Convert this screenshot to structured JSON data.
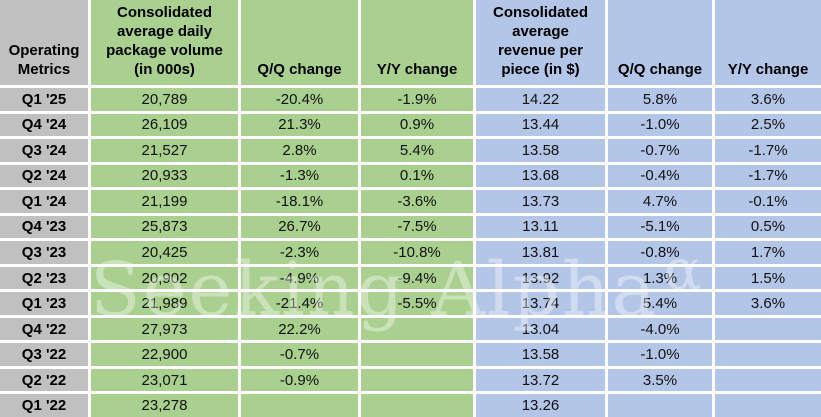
{
  "colors": {
    "label_bg": "#c0c0c0",
    "volume_bg": "#a9d08e",
    "revenue_bg": "#b4c6e7",
    "gridline": "#ffffff",
    "text": "#000000"
  },
  "headers": {
    "corner": "Operating\nMetrics",
    "volume": "Consolidated\naverage daily\npackage volume\n(in 000s)",
    "volume_qq": "Q/Q change",
    "volume_yy": "Y/Y change",
    "revenue": "Consolidated\naverage\nrevenue per\npiece (in $)",
    "revenue_qq": "Q/Q change",
    "revenue_yy": "Y/Y change"
  },
  "watermark": {
    "text": "Seeking Alpha",
    "symbol": "α"
  },
  "chart_data": {
    "type": "table",
    "title": "Operating Metrics",
    "columns": [
      "Operating Metrics",
      "Consolidated average daily package volume (in 000s)",
      "Q/Q change",
      "Y/Y change",
      "Consolidated average revenue per piece (in $)",
      "Q/Q change",
      "Y/Y change"
    ],
    "rows": [
      [
        "Q1 '25",
        "20,789",
        "-20.4%",
        "-1.9%",
        "14.22",
        "5.8%",
        "3.6%"
      ],
      [
        "Q4 '24",
        "26,109",
        "21.3%",
        "0.9%",
        "13.44",
        "-1.0%",
        "2.5%"
      ],
      [
        "Q3 '24",
        "21,527",
        "2.8%",
        "5.4%",
        "13.58",
        "-0.7%",
        "-1.7%"
      ],
      [
        "Q2 '24",
        "20,933",
        "-1.3%",
        "0.1%",
        "13.68",
        "-0.4%",
        "-1.7%"
      ],
      [
        "Q1 '24",
        "21,199",
        "-18.1%",
        "-3.6%",
        "13.73",
        "4.7%",
        "-0.1%"
      ],
      [
        "Q4 '23",
        "25,873",
        "26.7%",
        "-7.5%",
        "13.11",
        "-5.1%",
        "0.5%"
      ],
      [
        "Q3 '23",
        "20,425",
        "-2.3%",
        "-10.8%",
        "13.81",
        "-0.8%",
        "1.7%"
      ],
      [
        "Q2 '23",
        "20,902",
        "-4.9%",
        "-9.4%",
        "13.92",
        "1.3%",
        "1.5%"
      ],
      [
        "Q1 '23",
        "21,989",
        "-21.4%",
        "-5.5%",
        "13.74",
        "5.4%",
        "3.6%"
      ],
      [
        "Q4 '22",
        "27,973",
        "22.2%",
        "",
        "13.04",
        "-4.0%",
        ""
      ],
      [
        "Q3 '22",
        "22,900",
        "-0.7%",
        "",
        "13.58",
        "-1.0%",
        ""
      ],
      [
        "Q2 '22",
        "23,071",
        "-0.9%",
        "",
        "13.72",
        "3.5%",
        ""
      ],
      [
        "Q1 '22",
        "23,278",
        "",
        "",
        "13.26",
        "",
        ""
      ]
    ]
  }
}
